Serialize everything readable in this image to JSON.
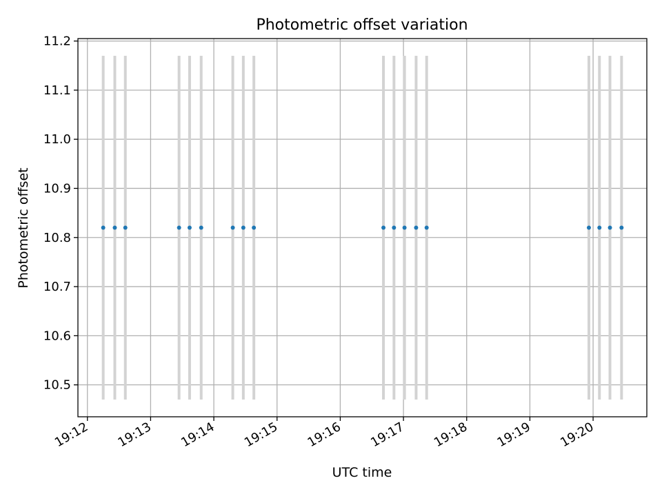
{
  "chart_data": {
    "type": "scatter",
    "title": "Photometric offset variation",
    "xlabel": "UTC time",
    "ylabel": "Photometric offset",
    "xlim": [
      "19:11:51",
      "19:20:51"
    ],
    "ylim": [
      10.435,
      11.205
    ],
    "x_ticks": [
      "19:12",
      "19:13",
      "19:14",
      "19:15",
      "19:16",
      "19:17",
      "19:18",
      "19:19",
      "19:20"
    ],
    "y_ticks": [
      "10.5",
      "10.6",
      "10.7",
      "10.8",
      "10.9",
      "11.0",
      "11.1",
      "11.2"
    ],
    "grid": true,
    "series": [
      {
        "x": [
          "19:12:15",
          "19:12:26",
          "19:12:36",
          "19:13:27",
          "19:13:37",
          "19:13:48",
          "19:14:18",
          "19:14:28",
          "19:14:38",
          "19:16:41",
          "19:16:51",
          "19:17:01",
          "19:17:12",
          "19:17:22",
          "19:19:56",
          "19:20:06",
          "19:20:16",
          "19:20:27"
        ],
        "y": [
          10.82,
          10.82,
          10.82,
          10.82,
          10.82,
          10.82,
          10.82,
          10.82,
          10.82,
          10.82,
          10.82,
          10.82,
          10.82,
          10.82,
          10.82,
          10.82,
          10.82,
          10.82
        ],
        "yerr_low": [
          10.47,
          10.47,
          10.47,
          10.47,
          10.47,
          10.47,
          10.47,
          10.47,
          10.47,
          10.47,
          10.47,
          10.47,
          10.47,
          10.47,
          10.47,
          10.47,
          10.47,
          10.47
        ],
        "yerr_high": [
          11.17,
          11.17,
          11.17,
          11.17,
          11.17,
          11.17,
          11.17,
          11.17,
          11.17,
          11.17,
          11.17,
          11.17,
          11.17,
          11.17,
          11.17,
          11.17,
          11.17,
          11.17
        ]
      }
    ],
    "colors": {
      "marker": "#1f77b4",
      "errorbar": "#d3d3d3",
      "grid": "#b0b0b0",
      "axes": "#000000"
    }
  }
}
